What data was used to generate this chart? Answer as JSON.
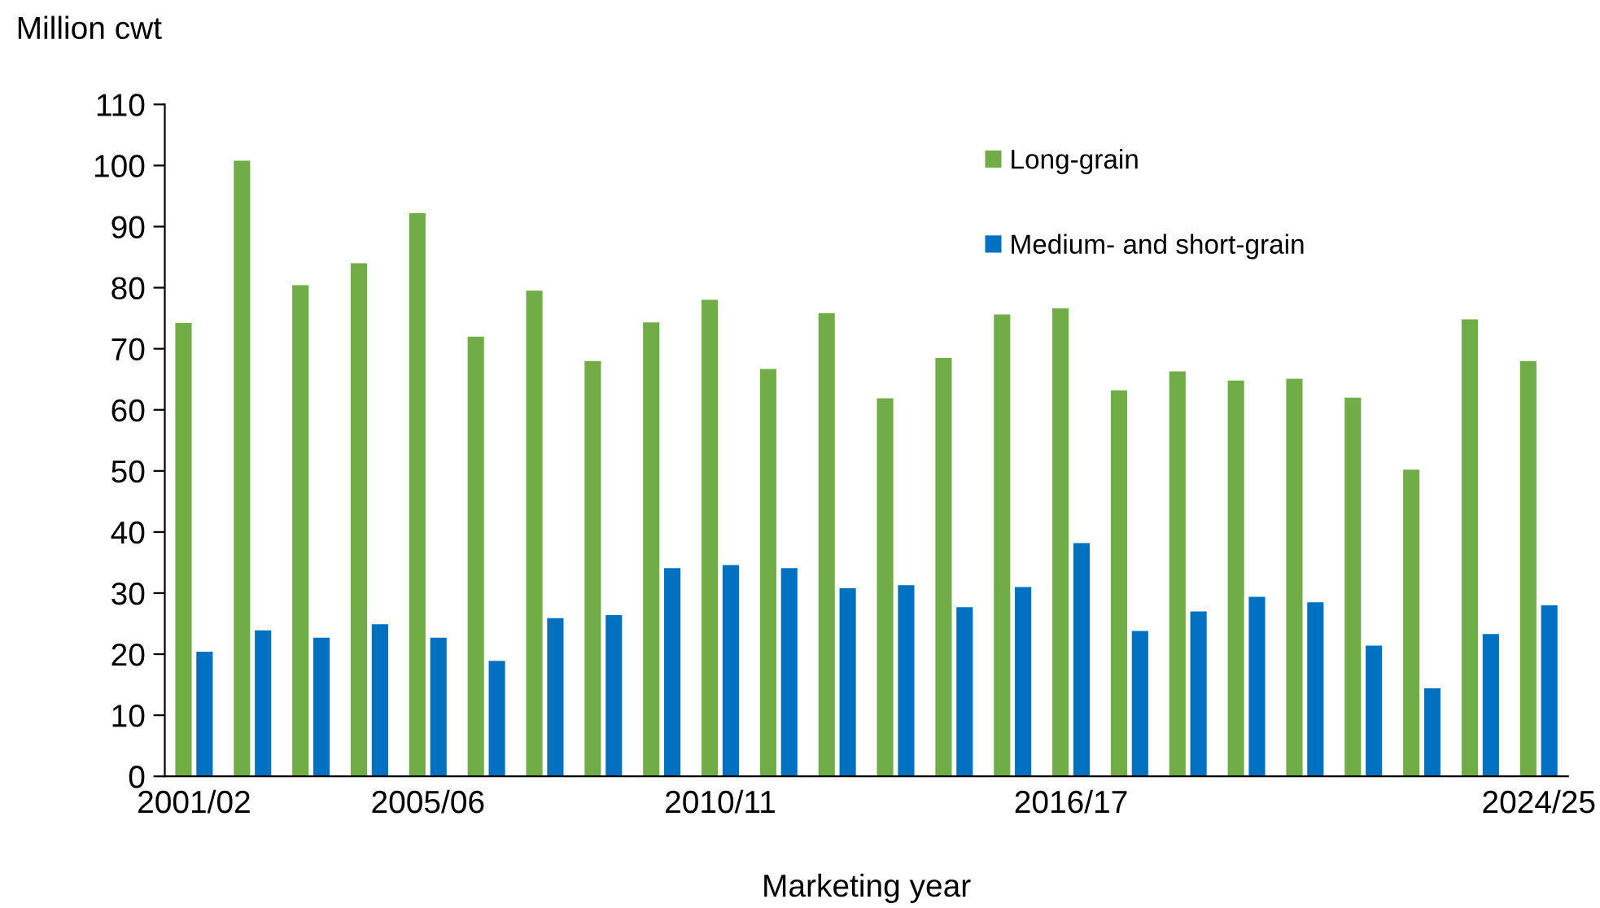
{
  "chart_data": {
    "type": "bar",
    "ylabel": "Million cwt",
    "xlabel": "Marketing year",
    "categories": [
      "2001/02",
      null,
      null,
      null,
      "2005/06",
      null,
      null,
      null,
      null,
      "2010/11",
      null,
      null,
      null,
      null,
      null,
      "2016/17",
      null,
      null,
      null,
      null,
      null,
      null,
      null,
      "2024/25"
    ],
    "series": [
      {
        "name": "Long-grain",
        "color": "#70ad47",
        "values": [
          74.2,
          100.8,
          80.4,
          84.0,
          92.2,
          72.0,
          79.5,
          68.0,
          74.3,
          78.0,
          66.7,
          75.8,
          61.9,
          68.5,
          75.6,
          76.6,
          63.2,
          66.3,
          64.8,
          65.1,
          62.0,
          50.2,
          74.8,
          68.0
        ]
      },
      {
        "name": "Medium- and short-grain",
        "color": "#0070c0",
        "values": [
          20.4,
          23.9,
          22.7,
          24.9,
          22.7,
          18.9,
          25.9,
          26.4,
          34.1,
          34.6,
          34.1,
          30.8,
          31.3,
          27.7,
          31.0,
          38.2,
          23.8,
          27.0,
          29.4,
          28.5,
          21.4,
          14.4,
          23.3,
          28.0
        ]
      }
    ],
    "ylim": [
      0,
      110
    ],
    "yticks": [
      0,
      10,
      20,
      30,
      40,
      50,
      60,
      70,
      80,
      90,
      100,
      110
    ],
    "grid": false,
    "legend": "top right"
  }
}
